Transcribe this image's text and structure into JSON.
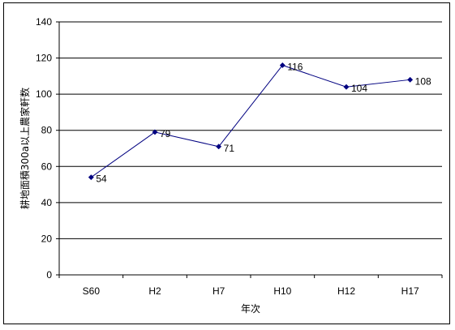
{
  "chart_data": {
    "type": "line",
    "categories": [
      "S60",
      "H2",
      "H7",
      "H10",
      "H12",
      "H17"
    ],
    "values": [
      54,
      79,
      71,
      116,
      104,
      108
    ],
    "data_labels": [
      "54",
      "79",
      "71",
      "116",
      "104",
      "108"
    ],
    "xlabel": "年次",
    "ylabel": "耕地面積300a以上農家軒数",
    "ylim": [
      0,
      140
    ],
    "yticks": [
      0,
      20,
      40,
      60,
      80,
      100,
      120,
      140
    ],
    "ytick_labels": [
      "0",
      "20",
      "40",
      "60",
      "80",
      "100",
      "120",
      "140"
    ],
    "grid": "horizontal",
    "legend": "none",
    "colors": {
      "series": "#000080",
      "grid": "#000000"
    }
  }
}
